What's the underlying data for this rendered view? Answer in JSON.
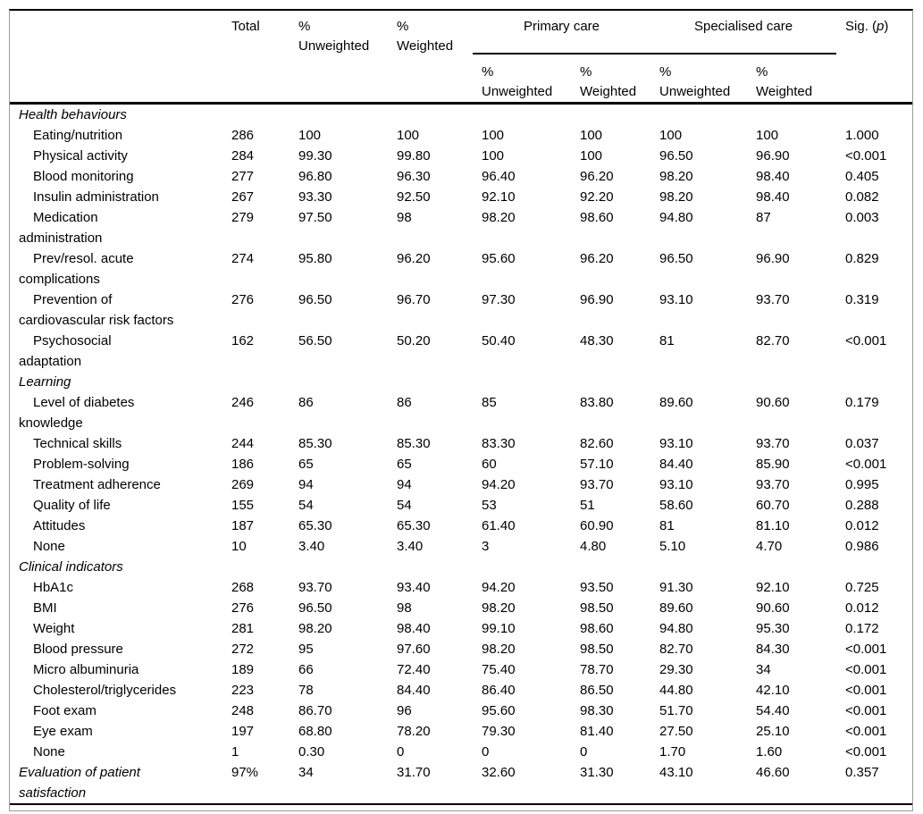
{
  "colors": {
    "background": "#ffffff",
    "text": "#000000",
    "rule": "#000000",
    "outer_border": "#9a9a9a"
  },
  "table": {
    "header": {
      "row_label": "",
      "total": "Total",
      "pct_unweighted": "%\nUnweighted",
      "pct_weighted": "%\nWeighted",
      "primary_care": "Primary care",
      "specialised_care": "Specialised care",
      "sub": [
        "%\nUnweighted",
        "%\nWeighted",
        "%\nUnweighted",
        "%\nWeighted"
      ],
      "sig_prefix": "Sig. (",
      "sig_italic": "p",
      "sig_suffix": ")"
    },
    "rows": [
      {
        "type": "section",
        "label": "Health behaviours"
      },
      {
        "type": "item",
        "label": "Eating/nutrition",
        "values": [
          "286",
          "100",
          "100",
          "100",
          "100",
          "100",
          "100",
          "1.000"
        ]
      },
      {
        "type": "item",
        "label": "Physical activity",
        "values": [
          "284",
          "99.30",
          "99.80",
          "100",
          "100",
          "96.50",
          "96.90",
          "<0.001"
        ]
      },
      {
        "type": "item",
        "label": "Blood monitoring",
        "values": [
          "277",
          "96.80",
          "96.30",
          "96.40",
          "96.20",
          "98.20",
          "98.40",
          "0.405"
        ]
      },
      {
        "type": "item",
        "label": "Insulin administration",
        "values": [
          "267",
          "93.30",
          "92.50",
          "92.10",
          "92.20",
          "98.20",
          "98.40",
          "0.082"
        ]
      },
      {
        "type": "item",
        "label": "Medication\nadministration",
        "values": [
          "279",
          "97.50",
          "98",
          "98.20",
          "98.60",
          "94.80",
          "87",
          "0.003"
        ]
      },
      {
        "type": "item",
        "label": "Prev/resol. acute\ncomplications",
        "values": [
          "274",
          "95.80",
          "96.20",
          "95.60",
          "96.20",
          "96.50",
          "96.90",
          "0.829"
        ]
      },
      {
        "type": "item",
        "label": "Prevention of\ncardiovascular risk factors",
        "values": [
          "276",
          "96.50",
          "96.70",
          "97.30",
          "96.90",
          "93.10",
          "93.70",
          "0.319"
        ]
      },
      {
        "type": "item",
        "label": "Psychosocial\nadaptation",
        "values": [
          "162",
          "56.50",
          "50.20",
          "50.40",
          "48.30",
          "81",
          "82.70",
          "<0.001"
        ]
      },
      {
        "type": "section",
        "label": "Learning"
      },
      {
        "type": "item",
        "label": "Level of diabetes\nknowledge",
        "values": [
          "246",
          "86",
          "86",
          "85",
          "83.80",
          "89.60",
          "90.60",
          "0.179"
        ]
      },
      {
        "type": "item",
        "label": "Technical skills",
        "values": [
          "244",
          "85.30",
          "85.30",
          "83.30",
          "82.60",
          "93.10",
          "93.70",
          "0.037"
        ]
      },
      {
        "type": "item",
        "label": "Problem-solving",
        "values": [
          "186",
          "65",
          "65",
          "60",
          "57.10",
          "84.40",
          "85.90",
          "<0.001"
        ]
      },
      {
        "type": "item",
        "label": "Treatment adherence",
        "values": [
          "269",
          "94",
          "94",
          "94.20",
          "93.70",
          "93.10",
          "93.70",
          "0.995"
        ]
      },
      {
        "type": "item",
        "label": "Quality of life",
        "values": [
          "155",
          "54",
          "54",
          "53",
          "51",
          "58.60",
          "60.70",
          "0.288"
        ]
      },
      {
        "type": "item",
        "label": "Attitudes",
        "values": [
          "187",
          "65.30",
          "65.30",
          "61.40",
          "60.90",
          "81",
          "81.10",
          "0.012"
        ]
      },
      {
        "type": "item",
        "label": "None",
        "values": [
          "10",
          "3.40",
          "3.40",
          "3",
          "4.80",
          "5.10",
          "4.70",
          "0.986"
        ]
      },
      {
        "type": "section",
        "label": "Clinical indicators"
      },
      {
        "type": "item",
        "label": "HbA1c",
        "values": [
          "268",
          "93.70",
          "93.40",
          "94.20",
          "93.50",
          "91.30",
          "92.10",
          "0.725"
        ]
      },
      {
        "type": "item",
        "label": "BMI",
        "values": [
          "276",
          "96.50",
          "98",
          "98.20",
          "98.50",
          "89.60",
          "90.60",
          "0.012"
        ]
      },
      {
        "type": "item",
        "label": "Weight",
        "values": [
          "281",
          "98.20",
          "98.40",
          "99.10",
          "98.60",
          "94.80",
          "95.30",
          "0.172"
        ]
      },
      {
        "type": "item",
        "label": "Blood pressure",
        "values": [
          "272",
          "95",
          "97.60",
          "98.20",
          "98.50",
          "82.70",
          "84.30",
          "<0.001"
        ]
      },
      {
        "type": "item",
        "label": "Micro albuminuria",
        "values": [
          "189",
          "66",
          "72.40",
          "75.40",
          "78.70",
          "29.30",
          "34",
          "<0.001"
        ]
      },
      {
        "type": "item",
        "label": "Cholesterol/triglycerides",
        "values": [
          "223",
          "78",
          "84.40",
          "86.40",
          "86.50",
          "44.80",
          "42.10",
          "<0.001"
        ]
      },
      {
        "type": "item",
        "label": "Foot exam",
        "values": [
          "248",
          "86.70",
          "96",
          "95.60",
          "98.30",
          "51.70",
          "54.40",
          "<0.001"
        ]
      },
      {
        "type": "item",
        "label": "Eye exam",
        "values": [
          "197",
          "68.80",
          "78.20",
          "79.30",
          "81.40",
          "27.50",
          "25.10",
          "<0.001"
        ]
      },
      {
        "type": "item",
        "label": "None",
        "values": [
          "1",
          "0.30",
          "0",
          "0",
          "0",
          "1.70",
          "1.60",
          "<0.001"
        ]
      },
      {
        "type": "section_data",
        "label": "Evaluation of patient\nsatisfaction",
        "values": [
          "97%",
          "34",
          "31.70",
          "32.60",
          "31.30",
          "43.10",
          "46.60",
          "0.357"
        ]
      }
    ]
  }
}
